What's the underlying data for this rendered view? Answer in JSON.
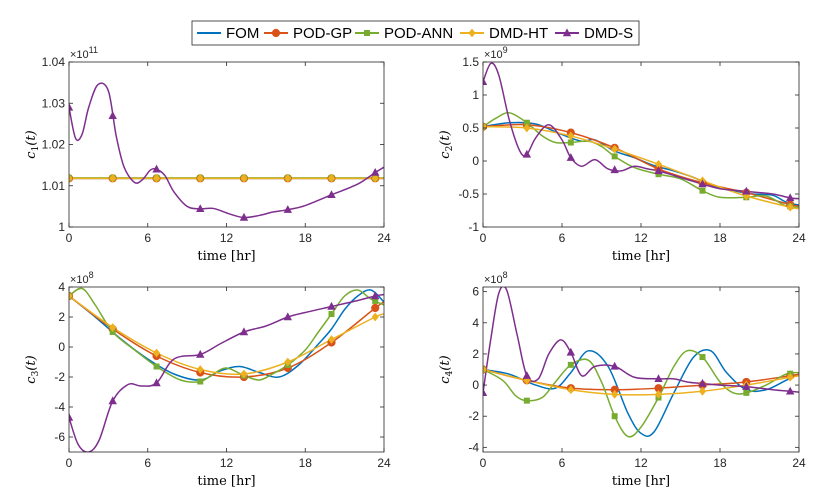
{
  "legend": [
    {
      "name": "FOM",
      "color": "#0072BD",
      "marker": "none"
    },
    {
      "name": "POD-GP",
      "color": "#D95319",
      "marker": "circle"
    },
    {
      "name": "POD-ANN",
      "color": "#77AC30",
      "marker": "square"
    },
    {
      "name": "DMD-HT",
      "color": "#EDB120",
      "marker": "diamond"
    },
    {
      "name": "DMD-S",
      "color": "#7E2F8E",
      "marker": "triangle"
    }
  ],
  "chart_data": [
    {
      "type": "line",
      "ylabel_base": "c",
      "ylabel_sub": "1",
      "ylabel_arg": "(t)",
      "xlabel": "time [hr]",
      "multiplier_base": "×10",
      "multiplier_exp": "11",
      "xlim": [
        0,
        24
      ],
      "ylim": [
        1.0,
        1.04
      ],
      "xticks": [
        0,
        6,
        12,
        18,
        24
      ],
      "xtick_labels": [
        "0",
        "6",
        "12",
        "18",
        "24"
      ],
      "yticks": [
        1.0,
        1.01,
        1.02,
        1.03,
        1.04
      ],
      "ytick_labels": [
        "1",
        "1.01",
        "1.02",
        "1.03",
        "1.04"
      ],
      "grid": false,
      "series": [
        {
          "name": "FOM",
          "x": [
            0,
            24
          ],
          "y": [
            1.0118,
            1.0118
          ]
        },
        {
          "name": "POD-GP",
          "x": [
            0,
            3.33,
            6.67,
            10,
            13.33,
            16.67,
            20,
            23.33,
            24
          ],
          "y": [
            1.0118,
            1.0118,
            1.0118,
            1.0118,
            1.0118,
            1.0118,
            1.0118,
            1.0118,
            1.0118
          ]
        },
        {
          "name": "POD-ANN",
          "x": [
            0,
            3.33,
            6.67,
            10,
            13.33,
            16.67,
            20,
            23.33,
            24
          ],
          "y": [
            1.0119,
            1.0119,
            1.0119,
            1.0119,
            1.0119,
            1.0119,
            1.0119,
            1.0119,
            1.0119
          ]
        },
        {
          "name": "DMD-HT",
          "x": [
            0,
            3.33,
            6.67,
            10,
            13.33,
            16.67,
            20,
            23.33,
            24
          ],
          "y": [
            1.0118,
            1.0118,
            1.0118,
            1.0118,
            1.0118,
            1.0118,
            1.0118,
            1.0118,
            1.0118
          ]
        },
        {
          "name": "DMD-S",
          "x": [
            0,
            0.5,
            1,
            1.5,
            2.2,
            3.0,
            3.6,
            4.2,
            5.0,
            5.6,
            6.2,
            6.67,
            7.3,
            8.0,
            9.0,
            10.0,
            11.0,
            12.2,
            13.33,
            14.5,
            15.5,
            16.67,
            18.0,
            20.0,
            22.0,
            23.33,
            24
          ],
          "y": [
            1.029,
            1.0215,
            1.0225,
            1.029,
            1.0345,
            1.033,
            1.022,
            1.0145,
            1.0108,
            1.0115,
            1.0138,
            1.014,
            1.0125,
            1.0085,
            1.005,
            1.0044,
            1.0045,
            1.0032,
            1.0023,
            1.0028,
            1.0036,
            1.0042,
            1.0052,
            1.0078,
            1.0104,
            1.0132,
            1.0145
          ]
        }
      ],
      "markers_x": [
        0,
        3.33,
        6.67,
        10,
        13.33,
        16.67,
        20,
        23.33
      ]
    },
    {
      "type": "line",
      "ylabel_base": "c",
      "ylabel_sub": "2",
      "ylabel_arg": "(t)",
      "xlabel": "time [hr]",
      "multiplier_base": "×10",
      "multiplier_exp": "9",
      "xlim": [
        0,
        24
      ],
      "ylim": [
        -1.0,
        1.5
      ],
      "xticks": [
        0,
        6,
        12,
        18,
        24
      ],
      "xtick_labels": [
        "0",
        "6",
        "12",
        "18",
        "24"
      ],
      "yticks": [
        -1.0,
        -0.5,
        0,
        0.5,
        1.0,
        1.5
      ],
      "ytick_labels": [
        "-1",
        "-0.5",
        "0",
        "0.5",
        "1",
        "1.5"
      ],
      "grid": false,
      "series": [
        {
          "name": "FOM",
          "x": [
            0,
            2,
            4,
            6,
            7.5,
            8.5,
            10,
            11.5,
            13,
            14.5,
            16,
            17.5,
            19,
            20.5,
            22,
            23,
            24
          ],
          "y": [
            0.52,
            0.58,
            0.56,
            0.4,
            0.3,
            0.32,
            0.15,
            0.05,
            -0.07,
            -0.15,
            -0.25,
            -0.38,
            -0.45,
            -0.5,
            -0.52,
            -0.62,
            -0.67
          ]
        },
        {
          "name": "POD-GP",
          "x": [
            0,
            3.33,
            6.67,
            10,
            13.33,
            16.67,
            20,
            23.33,
            24
          ],
          "y": [
            0.52,
            0.55,
            0.43,
            0.2,
            -0.12,
            -0.33,
            -0.48,
            -0.66,
            -0.68
          ]
        },
        {
          "name": "POD-ANN",
          "x": [
            0,
            1,
            2,
            3.33,
            4.5,
            5.5,
            6.67,
            8,
            9,
            10,
            11.5,
            13.33,
            15,
            16.67,
            18,
            20,
            21.5,
            23,
            24
          ],
          "y": [
            0.52,
            0.65,
            0.73,
            0.58,
            0.38,
            0.28,
            0.28,
            0.3,
            0.22,
            0.07,
            -0.1,
            -0.2,
            -0.27,
            -0.45,
            -0.55,
            -0.55,
            -0.53,
            -0.68,
            -0.7
          ]
        },
        {
          "name": "DMD-HT",
          "x": [
            0,
            3.33,
            6.67,
            10,
            13.33,
            16.67,
            20,
            23.33,
            24
          ],
          "y": [
            0.52,
            0.5,
            0.38,
            0.18,
            -0.05,
            -0.3,
            -0.53,
            -0.7,
            -0.72
          ]
        },
        {
          "name": "DMD-S",
          "x": [
            0,
            0.6,
            1.2,
            2.0,
            2.8,
            3.33,
            4.0,
            5.0,
            6.0,
            6.67,
            7.5,
            8.5,
            9.5,
            10.5,
            11.5,
            12.5,
            13.33,
            14.5,
            15.5,
            16.67,
            18,
            20,
            22,
            23.33,
            24
          ],
          "y": [
            1.2,
            1.48,
            1.3,
            0.62,
            0.15,
            0.1,
            0.35,
            0.55,
            0.32,
            0.05,
            -0.08,
            0.02,
            -0.12,
            -0.15,
            -0.08,
            -0.12,
            -0.15,
            -0.22,
            -0.28,
            -0.35,
            -0.42,
            -0.46,
            -0.5,
            -0.56,
            -0.57
          ]
        }
      ],
      "markers_x": [
        0,
        3.33,
        6.67,
        10,
        13.33,
        16.67,
        20,
        23.33
      ]
    },
    {
      "type": "line",
      "ylabel_base": "c",
      "ylabel_sub": "3",
      "ylabel_arg": "(t)",
      "xlabel": "time [hr]",
      "multiplier_base": "×10",
      "multiplier_exp": "8",
      "xlim": [
        0,
        24
      ],
      "ylim": [
        -7,
        4
      ],
      "xticks": [
        0,
        6,
        12,
        18,
        24
      ],
      "xtick_labels": [
        "0",
        "6",
        "12",
        "18",
        "24"
      ],
      "yticks": [
        -6,
        -4,
        -2,
        0,
        2,
        4
      ],
      "ytick_labels": [
        "-6",
        "-4",
        "-2",
        "0",
        "2",
        "4"
      ],
      "grid": false,
      "series": [
        {
          "name": "FOM",
          "x": [
            0,
            2,
            4,
            6,
            8,
            10,
            11.5,
            13,
            14.5,
            16,
            17.5,
            19,
            20,
            21,
            22,
            23,
            24
          ],
          "y": [
            3.4,
            2.0,
            0.5,
            -0.8,
            -1.8,
            -2.2,
            -1.6,
            -1.3,
            -1.7,
            -2.0,
            -1.2,
            0.2,
            1.2,
            2.5,
            3.4,
            3.8,
            3.0
          ]
        },
        {
          "name": "POD-GP",
          "x": [
            0,
            3.33,
            6.67,
            10,
            13.33,
            16.67,
            20,
            23.33,
            24
          ],
          "y": [
            3.4,
            1.2,
            -0.6,
            -1.7,
            -2.0,
            -1.4,
            0.3,
            2.6,
            3.0
          ]
        },
        {
          "name": "POD-ANN",
          "x": [
            0,
            1,
            2,
            3.33,
            5,
            6.67,
            8.5,
            10,
            11,
            12,
            13.33,
            14.5,
            15.5,
            16.67,
            18,
            19,
            20,
            21,
            22,
            23,
            24
          ],
          "y": [
            3.4,
            3.9,
            2.8,
            1.0,
            -0.2,
            -1.3,
            -2.2,
            -2.3,
            -1.8,
            -1.4,
            -1.9,
            -2.2,
            -1.8,
            -1.2,
            -0.2,
            1.0,
            2.2,
            3.4,
            3.8,
            3.2,
            2.8
          ]
        },
        {
          "name": "DMD-HT",
          "x": [
            0,
            3.33,
            6.67,
            10,
            13.33,
            16.67,
            20,
            23.33,
            24
          ],
          "y": [
            3.4,
            1.3,
            -0.4,
            -1.5,
            -1.8,
            -1.0,
            0.5,
            2.0,
            2.2
          ]
        },
        {
          "name": "DMD-S",
          "x": [
            0,
            0.7,
            1.5,
            2.3,
            3.33,
            4.5,
            5.5,
            6.67,
            8,
            10,
            11.5,
            13.33,
            15,
            16.67,
            18,
            20,
            22,
            23.33,
            24
          ],
          "y": [
            -4.7,
            -6.5,
            -7.0,
            -6.2,
            -3.6,
            -2.5,
            -2.6,
            -2.4,
            -0.8,
            -0.5,
            0.2,
            1.0,
            1.4,
            2.0,
            2.3,
            2.7,
            3.1,
            3.4,
            3.5
          ]
        }
      ],
      "markers_x": [
        0,
        3.33,
        6.67,
        10,
        13.33,
        16.67,
        20,
        23.33
      ]
    },
    {
      "type": "line",
      "ylabel_base": "c",
      "ylabel_sub": "4",
      "ylabel_arg": "(t)",
      "xlabel": "time [hr]",
      "multiplier_base": "×10",
      "multiplier_exp": "8",
      "xlim": [
        0,
        24
      ],
      "ylim": [
        -4.3,
        6.3
      ],
      "xticks": [
        0,
        6,
        12,
        18,
        24
      ],
      "xtick_labels": [
        "0",
        "6",
        "12",
        "18",
        "24"
      ],
      "yticks": [
        -4,
        -2,
        0,
        2,
        4,
        6
      ],
      "ytick_labels": [
        "-4",
        "-2",
        "0",
        "2",
        "4",
        "6"
      ],
      "grid": false,
      "series": [
        {
          "name": "FOM",
          "x": [
            0,
            2,
            4,
            5.5,
            6.67,
            8,
            9.5,
            11,
            12,
            13,
            14.5,
            16,
            17.3,
            18.5,
            20,
            21.5,
            23,
            24
          ],
          "y": [
            1.0,
            0.7,
            0.0,
            -0.2,
            0.8,
            2.2,
            1.2,
            -1.8,
            -3.1,
            -3.0,
            -0.5,
            1.8,
            2.2,
            0.8,
            -0.3,
            -0.3,
            0.3,
            0.7
          ]
        },
        {
          "name": "POD-GP",
          "x": [
            0,
            3.33,
            6.67,
            10,
            13.33,
            16.67,
            20,
            23.33,
            24
          ],
          "y": [
            1.0,
            0.3,
            -0.2,
            -0.3,
            -0.2,
            0.0,
            0.2,
            0.6,
            0.7
          ]
        },
        {
          "name": "POD-ANN",
          "x": [
            0,
            1.5,
            2.5,
            3.33,
            4.5,
            5.5,
            6.67,
            8,
            9,
            10,
            11,
            12,
            13.33,
            14.5,
            15.5,
            16.67,
            18,
            19,
            20,
            21.5,
            23,
            24
          ],
          "y": [
            1.0,
            0.3,
            -0.7,
            -1.0,
            -0.8,
            0.2,
            1.3,
            1.6,
            0.2,
            -2.0,
            -3.3,
            -2.7,
            -0.8,
            1.2,
            2.2,
            1.8,
            0.2,
            -0.5,
            -0.5,
            0.0,
            0.7,
            0.8
          ]
        },
        {
          "name": "DMD-HT",
          "x": [
            0,
            3.33,
            6.67,
            10,
            13.33,
            16.67,
            20,
            23.33,
            24
          ],
          "y": [
            1.0,
            0.3,
            -0.3,
            -0.6,
            -0.6,
            -0.4,
            0.0,
            0.5,
            0.6
          ]
        },
        {
          "name": "DMD-S",
          "x": [
            0,
            0.6,
            1.2,
            1.8,
            2.6,
            3.33,
            4.2,
            5.0,
            5.9,
            6.67,
            7.5,
            8.5,
            10,
            11.5,
            13.33,
            14.5,
            15.5,
            16.67,
            18,
            20,
            22,
            23.33,
            24
          ],
          "y": [
            -0.5,
            3.0,
            5.9,
            6.1,
            3.2,
            0.6,
            0.4,
            2.0,
            2.9,
            2.1,
            0.6,
            1.2,
            1.2,
            0.5,
            0.4,
            0.4,
            0.2,
            0.1,
            0.0,
            -0.1,
            -0.3,
            -0.4,
            -0.45
          ]
        }
      ],
      "markers_x": [
        0,
        3.33,
        6.67,
        10,
        13.33,
        16.67,
        20,
        23.33
      ]
    }
  ]
}
